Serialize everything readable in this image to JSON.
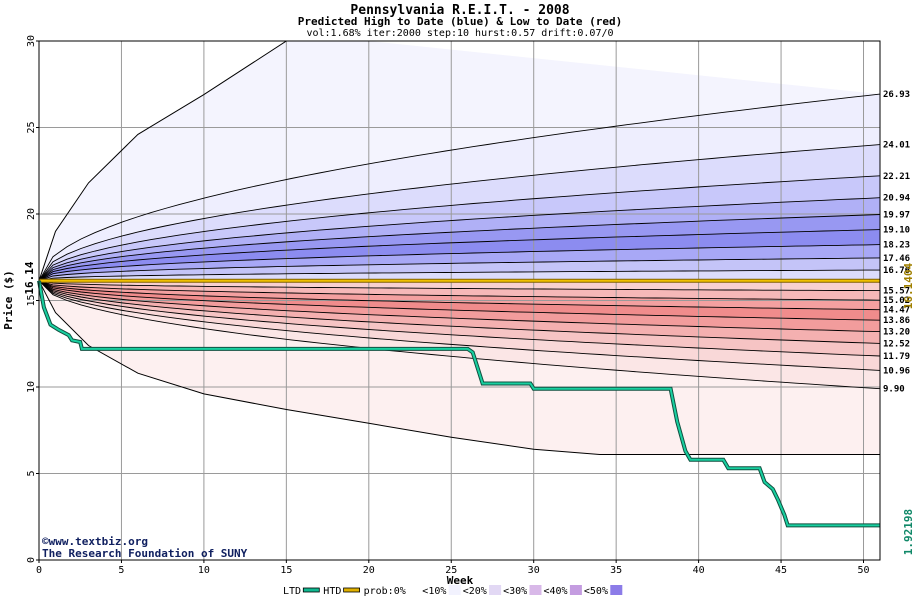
{
  "chart_data": {
    "type": "area",
    "title": "Pennsylvania R.E.I.T. - 2008",
    "subtitle": "Predicted High to Date (blue) &  Low to Date (red)",
    "params": "vol:1.68% iter:2000 step:10 hurst:0.57 drift:0.07/0",
    "xlabel": "Week",
    "ylabel": "Price ($)",
    "xlim": [
      0,
      51
    ],
    "ylim": [
      0,
      30
    ],
    "x_ticks": [
      "0",
      "5",
      "10",
      "15",
      "20",
      "25",
      "30",
      "35",
      "40",
      "45",
      "50"
    ],
    "y_ticks": [
      "0",
      "5",
      "10",
      "15",
      "20",
      "25",
      "30"
    ],
    "start_price": 16.14,
    "start_label": "16.14",
    "grid": true,
    "high_levels": [
      {
        "label": "26.93",
        "end": 26.93,
        "k": 1.0
      },
      {
        "label": "24.01",
        "end": 24.01,
        "k": 0.96
      },
      {
        "label": "22.21",
        "end": 22.21,
        "k": 0.93
      },
      {
        "label": "20.94",
        "end": 20.94,
        "k": 0.9
      },
      {
        "label": "19.97",
        "end": 19.97,
        "k": 0.87
      },
      {
        "label": "19.10",
        "end": 19.1,
        "k": 0.84
      },
      {
        "label": "18.23",
        "end": 18.23,
        "k": 0.8
      },
      {
        "label": "17.46",
        "end": 17.46,
        "k": 0.76
      },
      {
        "label": "16.76",
        "end": 16.76,
        "k": 0.7
      }
    ],
    "high_fills": [
      "#eeeefe",
      "#dcdcfc",
      "#c8c8fa",
      "#b0b0f6",
      "#9898f2",
      "#8c8cf0",
      "#a8a8f6",
      "#c4c4f8",
      "#dcdcfc"
    ],
    "low_levels": [
      {
        "label": "15.57",
        "end": 15.57,
        "k": 0.7
      },
      {
        "label": "15.02",
        "end": 15.02,
        "k": 0.76
      },
      {
        "label": "14.47",
        "end": 14.47,
        "k": 0.8
      },
      {
        "label": "13.86",
        "end": 13.86,
        "k": 0.84
      },
      {
        "label": "13.20",
        "end": 13.2,
        "k": 0.87
      },
      {
        "label": "12.52",
        "end": 12.52,
        "k": 0.9
      },
      {
        "label": "11.79",
        "end": 11.79,
        "k": 0.93
      },
      {
        "label": "10.96",
        "end": 10.96,
        "k": 0.96
      },
      {
        "label": "9.90",
        "end": 9.9,
        "k": 1.0
      }
    ],
    "low_fills": [
      "#f8d0d0",
      "#f6b8b8",
      "#f4a0a0",
      "#f08c8c",
      "#f29c9c",
      "#f4b0b0",
      "#f6c4c4",
      "#f9d8d8",
      "#fbe6e6"
    ],
    "outer_high": [
      [
        0,
        16.14
      ],
      [
        1,
        19.0
      ],
      [
        3,
        21.8
      ],
      [
        6,
        24.6
      ],
      [
        10,
        26.9
      ],
      [
        15,
        30.0
      ],
      [
        20,
        31.5
      ]
    ],
    "outer_low": [
      [
        0,
        16.14
      ],
      [
        1,
        14.3
      ],
      [
        3,
        12.4
      ],
      [
        6,
        10.8
      ],
      [
        10,
        9.6
      ],
      [
        15,
        8.7
      ],
      [
        20,
        7.9
      ],
      [
        25,
        7.1
      ],
      [
        30,
        6.4
      ],
      [
        34,
        6.1
      ],
      [
        51,
        6.1
      ]
    ],
    "ltd": [
      [
        0,
        16.14
      ],
      [
        0.3,
        14.6
      ],
      [
        0.7,
        13.6
      ],
      [
        1.2,
        13.3
      ],
      [
        1.8,
        13.0
      ],
      [
        2.0,
        12.7
      ],
      [
        2.5,
        12.6
      ],
      [
        2.6,
        12.2
      ],
      [
        3.0,
        12.2
      ],
      [
        26.0,
        12.2
      ],
      [
        26.3,
        12.0
      ],
      [
        26.9,
        10.2
      ],
      [
        29.8,
        10.2
      ],
      [
        30.0,
        9.9
      ],
      [
        38.3,
        9.9
      ],
      [
        38.7,
        8.0
      ],
      [
        39.2,
        6.3
      ],
      [
        39.5,
        5.8
      ],
      [
        41.5,
        5.8
      ],
      [
        41.8,
        5.3
      ],
      [
        43.7,
        5.3
      ],
      [
        44.0,
        4.5
      ],
      [
        44.5,
        4.1
      ],
      [
        44.8,
        3.5
      ],
      [
        45.2,
        2.6
      ],
      [
        45.4,
        2.0
      ],
      [
        51,
        2.0
      ]
    ],
    "htd": [
      [
        0,
        16.14
      ],
      [
        51,
        16.14
      ]
    ],
    "ltd_end_label": "1.92198",
    "htd_end_label": "16.1404",
    "legend": [
      {
        "label": "LTD",
        "kind": "line",
        "color": "#10b890"
      },
      {
        "label": "HTD",
        "kind": "line",
        "color": "#e0b000"
      },
      {
        "label": "prob:0%",
        "kind": "swatch",
        "color": "#ffffff"
      },
      {
        "label": "<10%",
        "kind": "swatch",
        "color": "#f2f2fe"
      },
      {
        "label": "<20%",
        "kind": "swatch",
        "color": "#e2d8f4"
      },
      {
        "label": "<30%",
        "kind": "swatch",
        "color": "#d8b8e8"
      },
      {
        "label": "<40%",
        "kind": "swatch",
        "color": "#c49ce0"
      },
      {
        "label": "<50%",
        "kind": "swatch",
        "color": "#8c7ce8"
      }
    ],
    "legend_placement": "bottom"
  },
  "watermark": {
    "line1": "©www.textbiz.org",
    "line2": "The Research Foundation of SUNY"
  }
}
